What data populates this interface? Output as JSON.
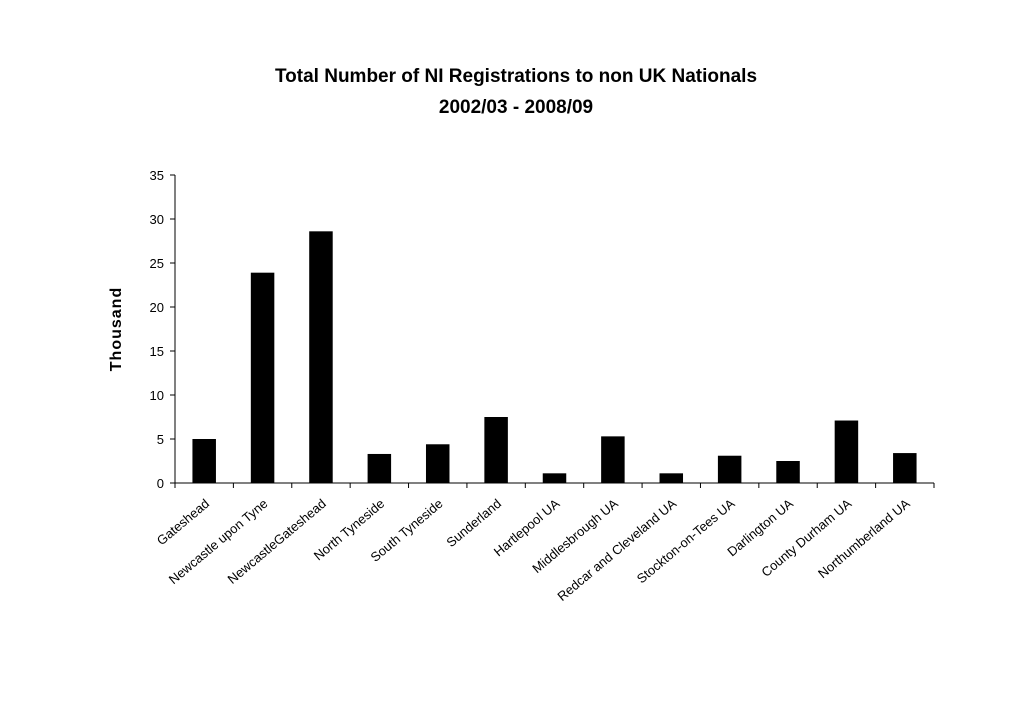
{
  "chart_data": {
    "type": "bar",
    "title": "Total Number of NI Registrations to non UK Nationals",
    "subtitle": "2002/03 - 2008/09",
    "xlabel": "",
    "ylabel": "Thousand",
    "ylim": [
      0,
      35
    ],
    "yticks": [
      "0",
      "5",
      "10",
      "15",
      "20",
      "25",
      "30",
      "35"
    ],
    "grid": false,
    "legend": "none",
    "bar_color": "#000000",
    "categories": [
      "Gateshead",
      "Newcastle upon Tyne",
      "NewcastleGateshead",
      "North Tyneside",
      "South Tyneside",
      "Sunderland",
      "Hartlepool UA",
      "Middlesbrough UA",
      "Redcar and Cleveland UA",
      "Stockton-on-Tees UA",
      "Darlington UA",
      "County Durham UA",
      "Northumberland UA"
    ],
    "values": [
      5.0,
      23.9,
      28.6,
      3.3,
      4.4,
      7.5,
      1.1,
      5.3,
      1.1,
      3.1,
      2.5,
      7.1,
      3.4
    ]
  }
}
